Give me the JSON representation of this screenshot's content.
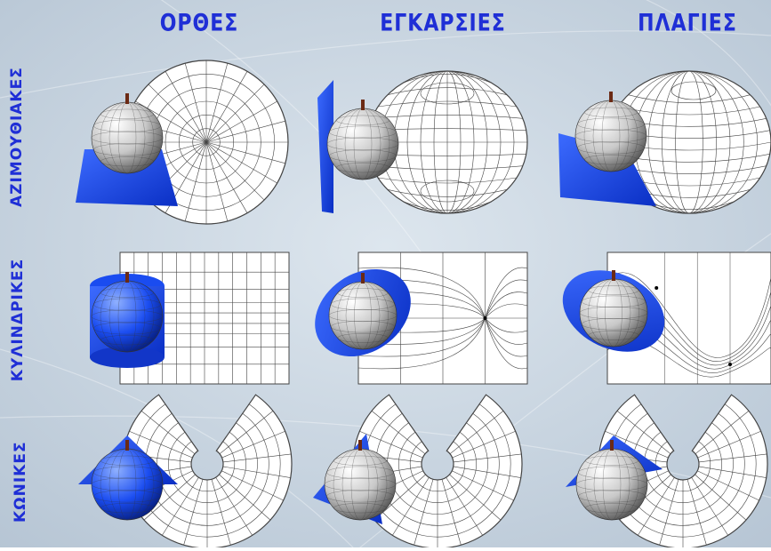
{
  "columns": [
    {
      "id": "regular",
      "label": "ΟΡΘΕΣ"
    },
    {
      "id": "transverse",
      "label": "ΕΓΚΑΡΣΙΕΣ"
    },
    {
      "id": "oblique",
      "label": "ΠΛΑΓΙΕΣ"
    }
  ],
  "rows": [
    {
      "id": "azimuthal",
      "label": "ΑΖΙΜΟΥΘΙΑΚΕΣ"
    },
    {
      "id": "cylindrical",
      "label": "ΚΥΛΙΝΔΡΙΚΕΣ"
    },
    {
      "id": "conic",
      "label": "ΚΩΝΙΚΕΣ"
    }
  ],
  "colors": {
    "label": "#1f2fd6",
    "surface": "#1a4cf0",
    "background": "#c7d3e0",
    "grid": "#444444"
  },
  "icons": [
    "globe-icon",
    "projection-plane-icon",
    "projection-cylinder-icon",
    "projection-cone-icon",
    "map-grid-icon"
  ]
}
